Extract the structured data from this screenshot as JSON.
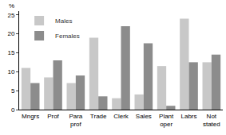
{
  "chart_data": {
    "type": "bar",
    "ylabel": "%",
    "categories": [
      "Mngrs",
      "Prof",
      "Para prof",
      "Trade",
      "Clerk",
      "Sales",
      "Plant oper",
      "Labrs",
      "Not stated"
    ],
    "series": [
      {
        "name": "Males",
        "color": "#c8c8c8",
        "values": [
          11,
          8.5,
          7,
          19,
          3,
          4,
          11.5,
          24,
          12.5
        ]
      },
      {
        "name": "Females",
        "color": "#8c8c8c",
        "values": [
          7,
          13,
          9,
          3.5,
          22,
          17.5,
          1,
          12.5,
          14.5
        ]
      }
    ],
    "ylim": [
      0,
      26
    ],
    "yticks": [
      0,
      5,
      10,
      15,
      20,
      25
    ],
    "grid": false,
    "legend": "top-left"
  }
}
